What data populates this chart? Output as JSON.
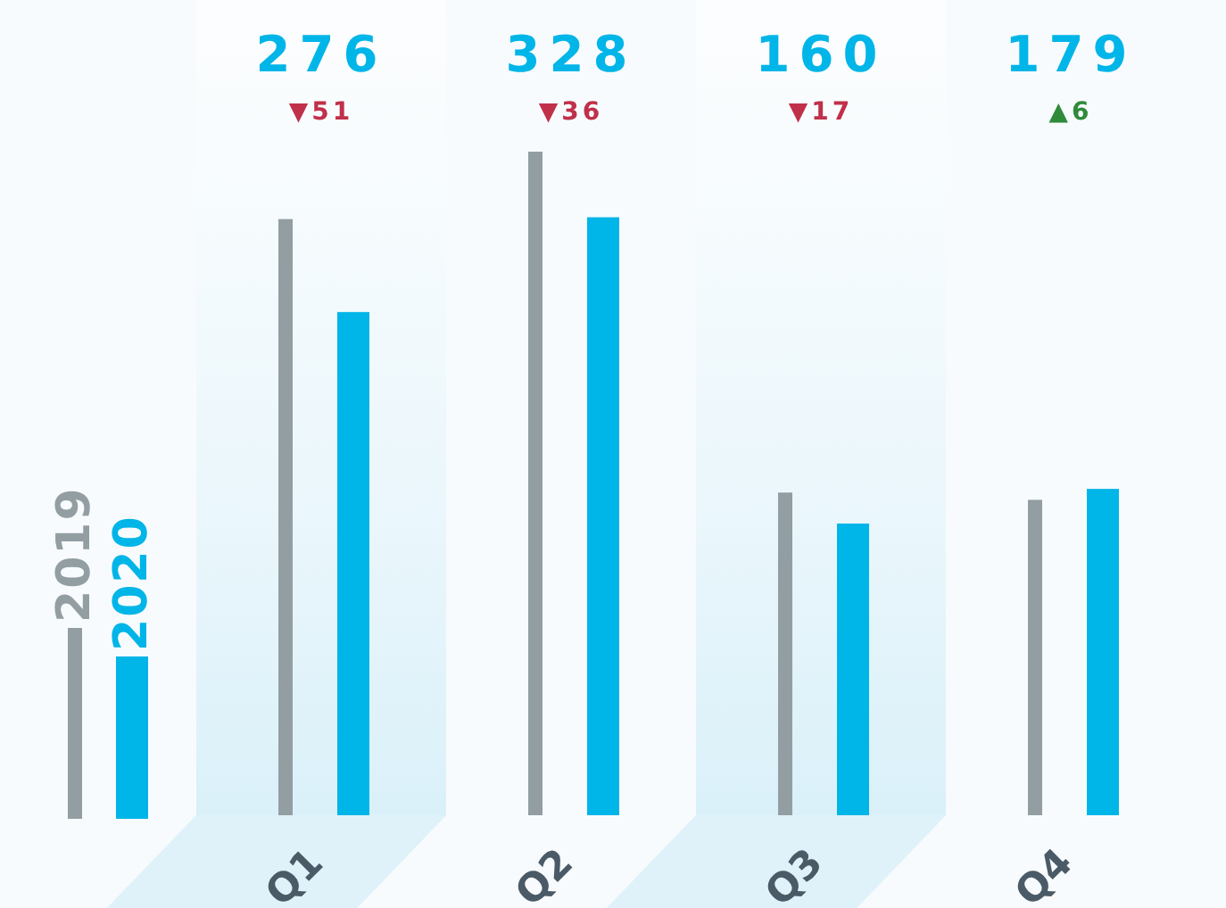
{
  "chart_data": {
    "type": "bar",
    "categories": [
      "Q1",
      "Q2",
      "Q3",
      "Q4"
    ],
    "series": [
      {
        "name": "2019",
        "color": "#939ea3",
        "values": [
          327,
          364,
          177,
          173
        ]
      },
      {
        "name": "2020",
        "color": "#00b5e8",
        "values": [
          276,
          328,
          160,
          179
        ],
        "value_labels": [
          "276",
          "328",
          "160",
          "179"
        ]
      }
    ],
    "annotations": [
      "▼51",
      "▼36",
      "▼17",
      "▲6"
    ],
    "legend": "left"
  }
}
